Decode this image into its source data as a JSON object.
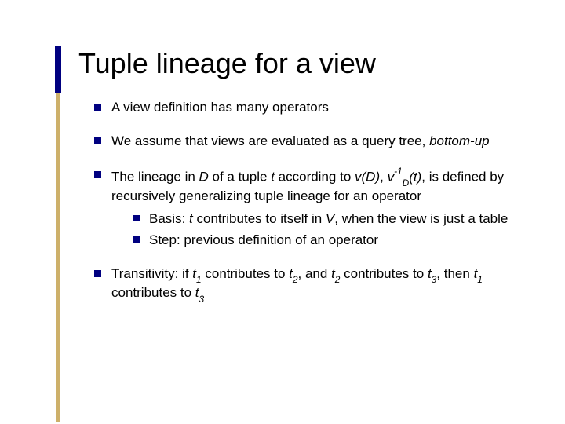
{
  "title": "Tuple lineage for a view",
  "accent_color": "#000080",
  "accent_secondary": "#cdb06a",
  "background_color": "#ffffff",
  "text_color": "#000000",
  "title_fontsize": 36,
  "body_fontsize": 17,
  "bullets": [
    {
      "text_html": "A view definition has many operators"
    },
    {
      "text_html": "We assume that views are evaluated as a query tree, <span class=\"italic\">bottom-up</span>"
    },
    {
      "text_html": "The lineage in <span class=\"italic\">D</span> of a tuple <span class=\"italic\">t</span> according to <span class=\"italic\">v(D)</span>, <span class=\"italic\">v<span class=\"sup\">-1</span><span class=\"sub\">D</span>(t)</span>, is defined by recursively generalizing tuple lineage for an operator",
      "children": [
        {
          "text_html": "Basis: <span class=\"italic\">t</span> contributes to itself in <span class=\"italic\">V</span>, when the view is just a table"
        },
        {
          "text_html": "Step: previous definition of an operator"
        }
      ]
    },
    {
      "text_html": "Transitivity: if <span class=\"italic\">t<span class=\"sub\">1</span></span> contributes to <span class=\"italic\">t<span class=\"sub\">2</span></span>, and <span class=\"italic\">t<span class=\"sub\">2</span></span> contributes to <span class=\"italic\">t<span class=\"sub\">3</span></span>, then <span class=\"italic\">t<span class=\"sub\">1</span></span> contributes to <span class=\"italic\">t<span class=\"sub\">3</span></span>"
    }
  ]
}
